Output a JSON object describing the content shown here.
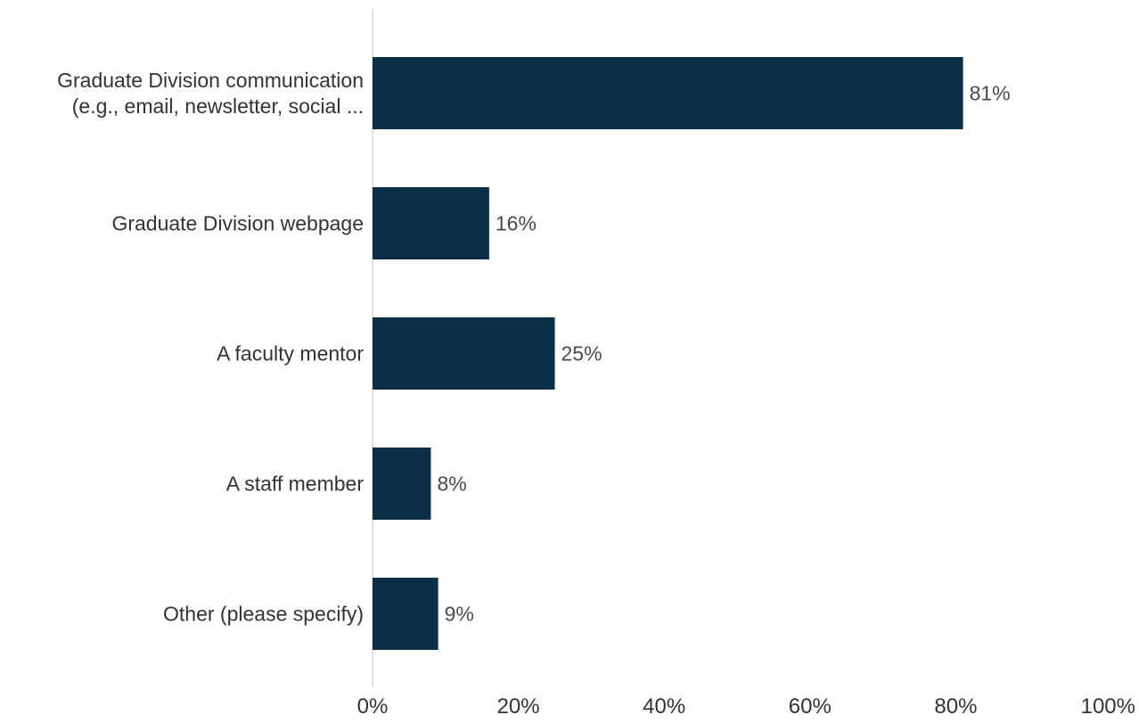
{
  "chart_data": {
    "type": "bar",
    "orientation": "horizontal",
    "categories": [
      [
        "Graduate Division communication",
        "(e.g., email, newsletter, social ..."
      ],
      [
        "Graduate Division webpage"
      ],
      [
        "A faculty mentor"
      ],
      [
        "A staff member"
      ],
      [
        "Other (please specify)"
      ]
    ],
    "values": [
      81,
      16,
      25,
      8,
      9
    ],
    "data_labels": [
      "81%",
      "16%",
      "25%",
      "8%",
      "9%"
    ],
    "xlim": [
      0,
      100
    ],
    "x_ticks": [
      0,
      20,
      40,
      60,
      80,
      100
    ],
    "x_tick_labels": [
      "0%",
      "20%",
      "40%",
      "60%",
      "80%",
      "100%"
    ],
    "grid": false,
    "legend": "none",
    "colors": {
      "bar": "#0b2f46",
      "axis_line": "#d9d9d9"
    }
  }
}
